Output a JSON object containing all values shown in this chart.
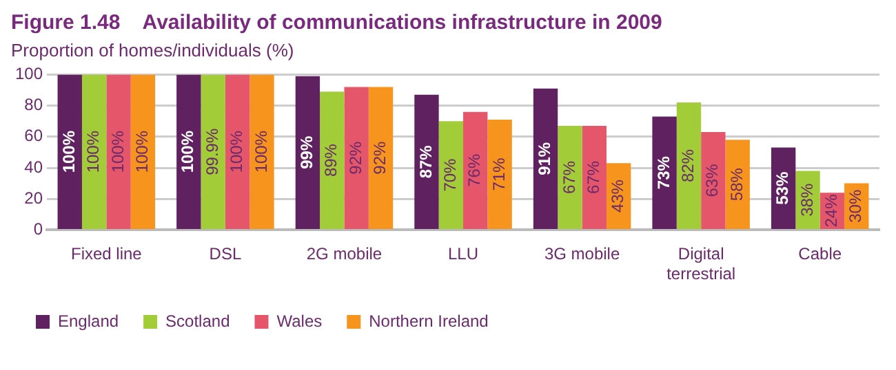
{
  "chart_data": {
    "type": "bar",
    "title": "Figure 1.48    Availability of communications infrastructure in 2009",
    "ylabel": "Proportion of homes/individuals (%)",
    "categories": [
      "Fixed line",
      "DSL",
      "2G mobile",
      "LLU",
      "3G mobile",
      "Digital terrestrial",
      "Cable"
    ],
    "series": [
      {
        "name": "England",
        "color": "#5f2160",
        "values": [
          100,
          100,
          99,
          87,
          91,
          73,
          53
        ],
        "value_labels": [
          "100%",
          "100%",
          "99%",
          "87%",
          "91%",
          "73%",
          "53%"
        ]
      },
      {
        "name": "Scotland",
        "color": "#a3cc39",
        "values": [
          100,
          99.9,
          89,
          70,
          67,
          82,
          38
        ],
        "value_labels": [
          "100%",
          "99.9%",
          "89%",
          "70%",
          "67%",
          "82%",
          "38%"
        ]
      },
      {
        "name": "Wales",
        "color": "#e5566b",
        "values": [
          100,
          100,
          92,
          76,
          67,
          63,
          24
        ],
        "value_labels": [
          "100%",
          "100%",
          "92%",
          "76%",
          "67%",
          "63%",
          "24%"
        ]
      },
      {
        "name": "Northern Ireland",
        "color": "#f7941d",
        "values": [
          100,
          100,
          92,
          71,
          43,
          58,
          30
        ],
        "value_labels": [
          "100%",
          "100%",
          "92%",
          "71%",
          "43%",
          "58%",
          "30%"
        ]
      }
    ],
    "ylim": [
      0,
      100
    ],
    "yticks": [
      0,
      20,
      40,
      60,
      80,
      100
    ],
    "grid": "y",
    "legend": "bottom"
  }
}
